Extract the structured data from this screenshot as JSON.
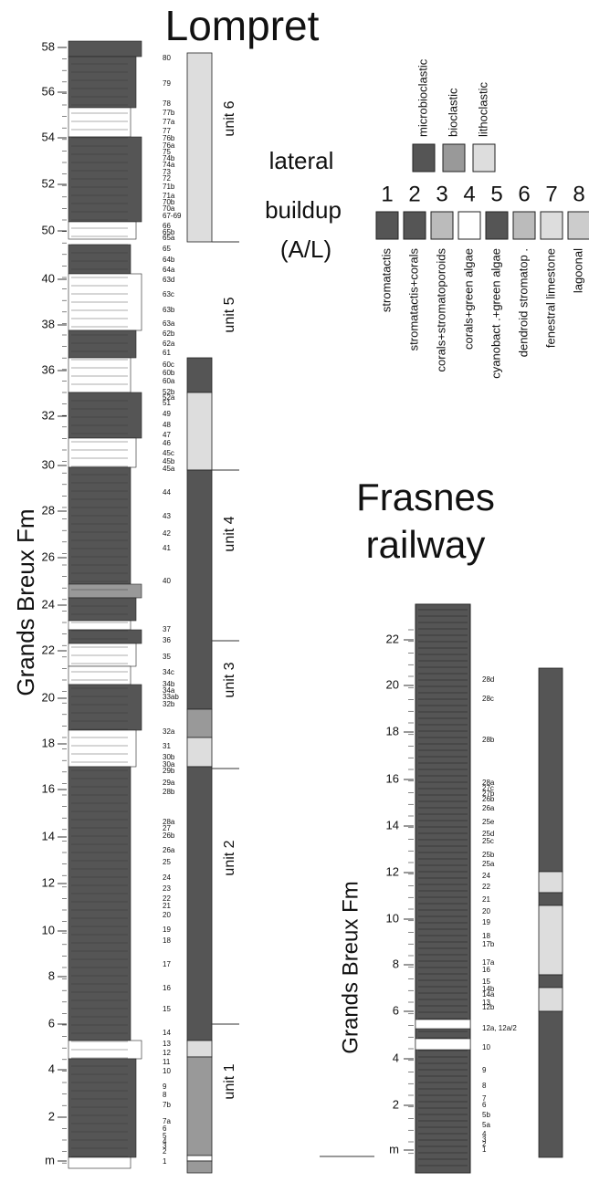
{
  "lompret": {
    "title": "Lompret",
    "formation": "Grands Breux Fm",
    "scale": [
      "58",
      "56",
      "54",
      "52",
      "50",
      "40",
      "38",
      "36",
      "32",
      "30",
      "28",
      "26",
      "24",
      "22",
      "20",
      "18",
      "16",
      "14",
      "12",
      "10",
      "8",
      "6",
      "4",
      "2",
      "m"
    ],
    "samples": [
      "80",
      "79",
      "78",
      "77b",
      "77a",
      "77",
      "76b",
      "76a",
      "75",
      "74b",
      "74a",
      "73",
      "72",
      "71b",
      "71a",
      "70b",
      "70a",
      "67-69",
      "66",
      "65b",
      "65a",
      "65",
      "64b",
      "64a",
      "63d",
      "63c",
      "63b",
      "63a",
      "62b",
      "62a",
      "61",
      "60c",
      "60b",
      "60a",
      "52b",
      "52a",
      "51",
      "49",
      "48",
      "47",
      "46",
      "45c",
      "45b",
      "45a",
      "44",
      "43",
      "42",
      "41",
      "40",
      "37",
      "36",
      "35",
      "34c",
      "34b",
      "34a",
      "33ab",
      "32b",
      "32a",
      "31",
      "30b",
      "30a",
      "29b",
      "29a",
      "28b",
      "28a",
      "27",
      "26b",
      "26a",
      "25",
      "24",
      "23",
      "22",
      "21",
      "20",
      "19",
      "18",
      "17",
      "16",
      "15",
      "14",
      "13",
      "12",
      "11",
      "10",
      "9",
      "8",
      "7b",
      "7a",
      "6",
      "5",
      "4",
      "3",
      "2",
      "1"
    ],
    "units": [
      "unit 6",
      "unit 5",
      "unit 4",
      "unit 3",
      "unit 2",
      "unit 1"
    ]
  },
  "legend": {
    "lateral": "lateral",
    "buildup": "buildup",
    "buildup_sub": "(A/L)",
    "lateral_types": [
      "microbioclastic",
      "bioclastic",
      "lithoclastic"
    ],
    "buildup_numbers": [
      "1",
      "2",
      "3",
      "4",
      "5",
      "6",
      "7",
      "8"
    ],
    "buildup_types": [
      "stromatactis",
      "stromatactis+corals",
      "corals+stromatoporoids",
      "corals+green algae",
      "cyanobact .+green algae",
      "dendroid stromatop .",
      "fenestral limestone",
      "lagoonal"
    ]
  },
  "frasnes": {
    "title_lines": [
      "Frasnes",
      "railway"
    ],
    "formation": "Grands Breux Fm",
    "scale": [
      "22",
      "20",
      "18",
      "16",
      "14",
      "12",
      "10",
      "8",
      "6",
      "4",
      "2",
      "m"
    ],
    "samples": [
      "28d",
      "28c",
      "28b",
      "28a",
      "27c",
      "27b",
      "26b",
      "26a",
      "25e",
      "25d",
      "25c",
      "25b",
      "25a",
      "24",
      "22",
      "21",
      "20",
      "19",
      "18",
      "17b",
      "17a",
      "16",
      "15",
      "14b",
      "14a",
      "13",
      "12b",
      "12a, 12a/2",
      "10",
      "9",
      "8",
      "7",
      "6",
      "5b",
      "5a",
      "4",
      "3",
      "2",
      "1"
    ]
  }
}
